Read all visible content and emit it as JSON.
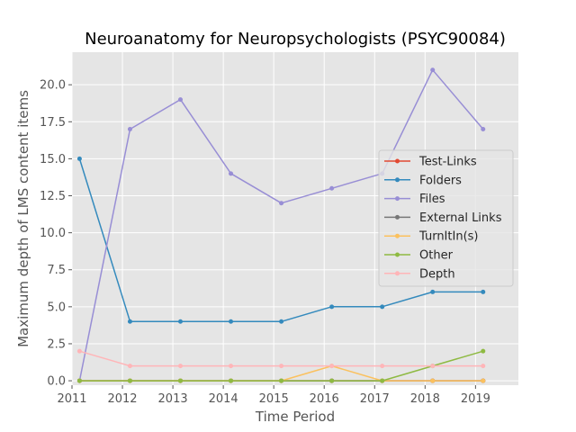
{
  "chart_data": {
    "type": "line",
    "title": "Neuroanatomy for Neuropsychologists (PSYC90084)",
    "xlabel": "Time Period",
    "ylabel": "Maximum depth of LMS content items",
    "x_tick_labels": [
      "2011",
      "2012",
      "2013",
      "2014",
      "2015",
      "2016",
      "2017",
      "2018",
      "2019"
    ],
    "y_tick_labels": [
      "0.0",
      "2.5",
      "5.0",
      "7.5",
      "10.0",
      "12.5",
      "15.0",
      "17.5",
      "20.0"
    ],
    "xlim": [
      2011.0,
      2019.85
    ],
    "ylim": [
      -0.3,
      22.2
    ],
    "grid": true,
    "legend_position": "center-right",
    "x": [
      "2011",
      "2012",
      "2013",
      "2014",
      "2015",
      "2016",
      "2017",
      "2018",
      "2019"
    ],
    "series": [
      {
        "name": "Test-Links",
        "color": "#e24a33",
        "values": [
          0,
          0,
          0,
          0,
          0,
          0,
          0,
          0,
          0
        ]
      },
      {
        "name": "Folders",
        "color": "#348abd",
        "values": [
          15,
          4,
          4,
          4,
          4,
          5,
          5,
          6,
          6
        ]
      },
      {
        "name": "Files",
        "color": "#988ed5",
        "values": [
          0,
          17,
          19,
          14,
          12,
          13,
          14,
          21,
          17
        ]
      },
      {
        "name": "External Links",
        "color": "#777777",
        "values": [
          0,
          0,
          0,
          0,
          0,
          0,
          0,
          0,
          0
        ]
      },
      {
        "name": "TurnItIn(s)",
        "color": "#fbc15e",
        "values": [
          0,
          0,
          0,
          0,
          0,
          1,
          0,
          0,
          0
        ]
      },
      {
        "name": "Other",
        "color": "#8eba42",
        "values": [
          0,
          0,
          0,
          0,
          0,
          0,
          0,
          1,
          2
        ]
      },
      {
        "name": "Depth",
        "color": "#ffb5b8",
        "values": [
          2,
          1,
          1,
          1,
          1,
          1,
          1,
          1,
          1
        ]
      }
    ]
  }
}
